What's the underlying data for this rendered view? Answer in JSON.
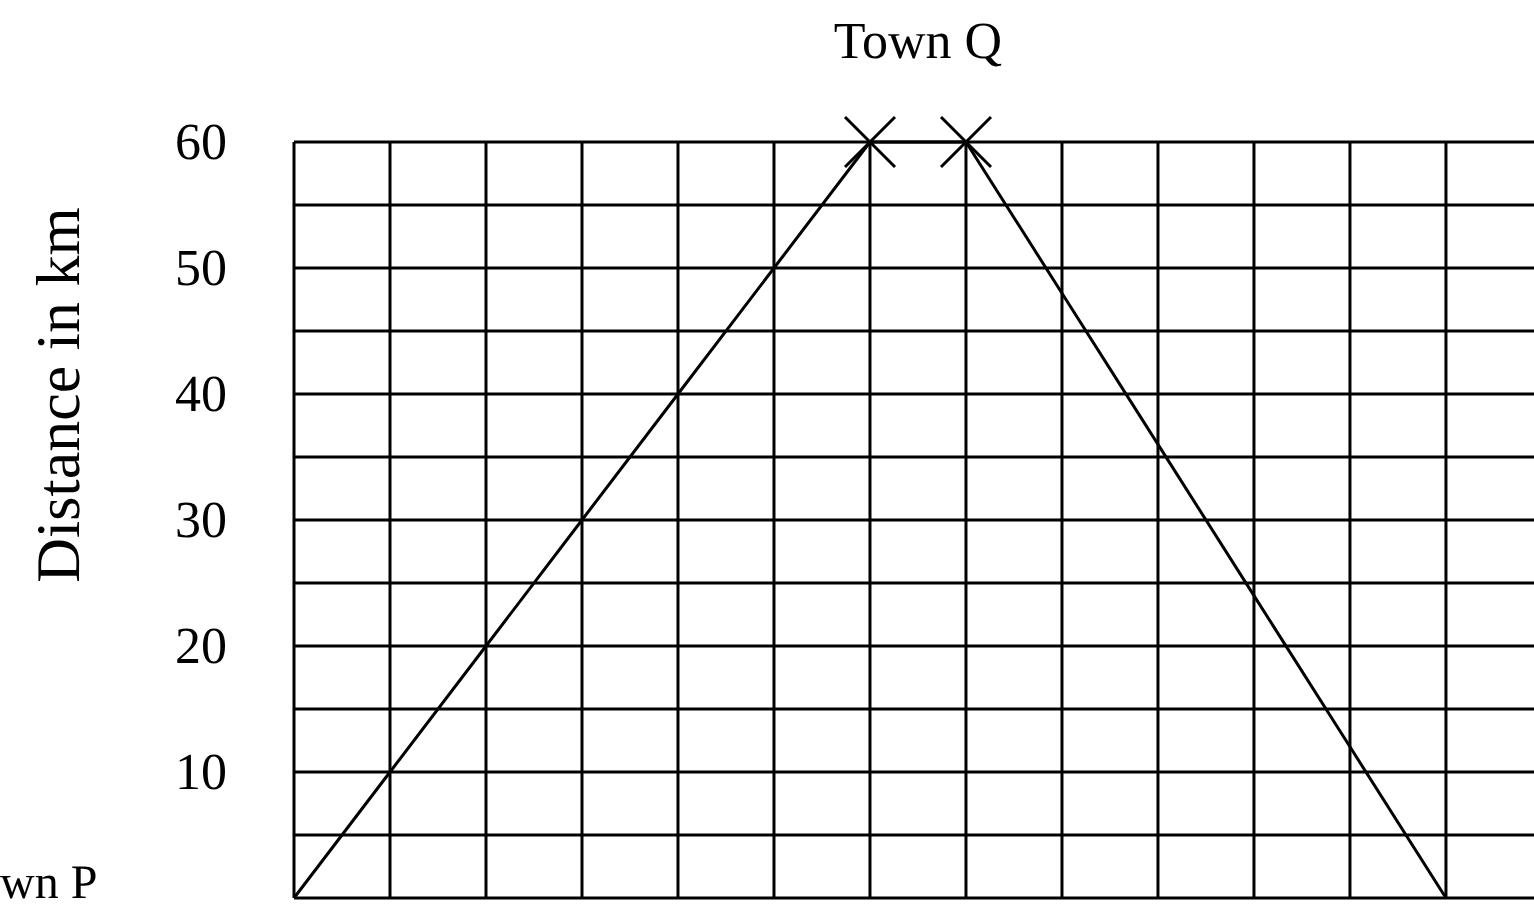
{
  "chart_data": {
    "type": "line",
    "ylabel": "Distance in km",
    "categories": [
      null,
      null,
      null,
      null,
      null,
      null,
      null,
      null,
      null,
      null,
      null,
      null,
      null
    ],
    "series": [
      {
        "color": "#000000",
        "marker": "none",
        "values": [
          0,
          10,
          20,
          30,
          40,
          50,
          60,
          60,
          48,
          36,
          24,
          12,
          0
        ]
      },
      {
        "type": "scatter",
        "color": "#000000",
        "marker": "cross",
        "values": [
          null,
          null,
          null,
          null,
          null,
          null,
          60,
          60,
          null,
          null,
          null,
          null,
          null
        ]
      }
    ],
    "ylim": [
      0,
      60
    ],
    "yticks": [
      {
        "value": 0,
        "label": null
      },
      {
        "value": 5,
        "label": null
      },
      10,
      {
        "value": 15,
        "label": null
      },
      20,
      {
        "value": 25,
        "label": null
      },
      30,
      {
        "value": 35,
        "label": null
      },
      40,
      {
        "value": 45,
        "label": null
      },
      50,
      {
        "value": 55,
        "label": null
      },
      60
    ],
    "grid": true,
    "tick_labels": "y",
    "annotations": [
      {
        "text": "Town Q",
        "y": 60
      },
      "wn P"
    ]
  }
}
